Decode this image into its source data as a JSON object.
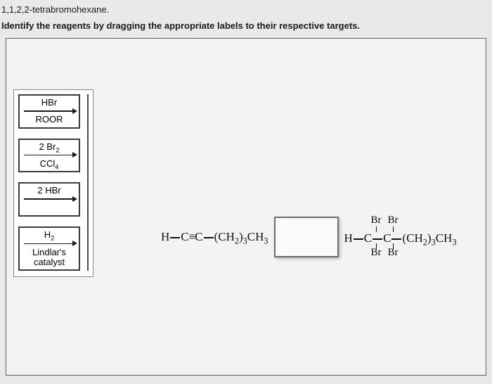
{
  "header": {
    "context_line": "1,1,2,2-tetrabromohexane.",
    "instruction": "Identify the reagents by dragging the appropriate labels to their respective targets."
  },
  "reagents": [
    {
      "id": "hbr-roor",
      "top_html": "HBr",
      "bottom_html": "ROOR",
      "bottom_spacer": false
    },
    {
      "id": "br2-ccl4",
      "top_html": "2 Br<sub>2</sub>",
      "bottom_html": "CCl<sub>4</sub>",
      "bottom_spacer": false
    },
    {
      "id": "2hbr",
      "top_html": "2 HBr",
      "bottom_html": "",
      "bottom_spacer": true
    },
    {
      "id": "h2-lindlar",
      "top_html": "H<sub>2</sub>",
      "bottom_html": "Lindlar's catalyst",
      "bottom_spacer": false
    }
  ],
  "scheme": {
    "reactant_html": "H<span class=\"bond\"></span>C<span class=\"triple\">≡</span>C<span class=\"bond\"></span>(CH<sub>2</sub>)<sub>3</sub>CH<sub>3</sub>",
    "product_main_html": "H<span class=\"bond\"></span>C<span class=\"bond\"></span>C<span class=\"bond\"></span>(CH<sub>2</sub>)<sub>3</sub>CH<sub>3</sub>",
    "br_label": "Br"
  },
  "colors": {
    "page_bg": "#e8e9e8",
    "panel_bg": "#f2f3f2",
    "border": "#5a5c5d",
    "text": "#1a1a1a"
  }
}
